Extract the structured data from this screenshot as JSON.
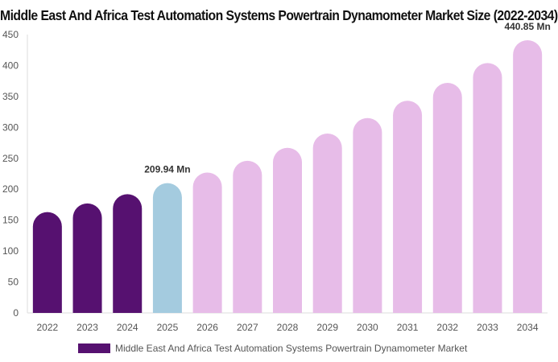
{
  "chart_data": {
    "type": "bar",
    "title": "Middle East And Africa Test Automation Systems Powertrain Dynamometer Market Size (2022-2034)",
    "xlabel": "",
    "ylabel": "",
    "ylim": [
      0,
      450
    ],
    "yticks": [
      "0",
      "50",
      "100",
      "150",
      "200",
      "250",
      "300",
      "350",
      "400",
      "450"
    ],
    "categories": [
      "2022",
      "2023",
      "2024",
      "2025",
      "2026",
      "2027",
      "2028",
      "2029",
      "2030",
      "2031",
      "2032",
      "2033",
      "2034"
    ],
    "series": [
      {
        "name": "Middle East And Africa Test Automation Systems Powertrain Dynamometer Market",
        "values": [
          163,
          177,
          192,
          209.94,
          227,
          246,
          267,
          290,
          315,
          343,
          372,
          404,
          440.85
        ]
      }
    ],
    "bar_colors": [
      "#561170",
      "#561170",
      "#561170",
      "#a4cbdf",
      "#e7bce8",
      "#e7bce8",
      "#e7bce8",
      "#e7bce8",
      "#e7bce8",
      "#e7bce8",
      "#e7bce8",
      "#e7bce8",
      "#e7bce8"
    ],
    "data_labels": [
      {
        "index": 3,
        "text": "209.94 Mn"
      },
      {
        "index": 12,
        "text": "440.85 Mn"
      }
    ],
    "legend": {
      "position": "bottom",
      "color": "#561170"
    },
    "grid": false
  }
}
